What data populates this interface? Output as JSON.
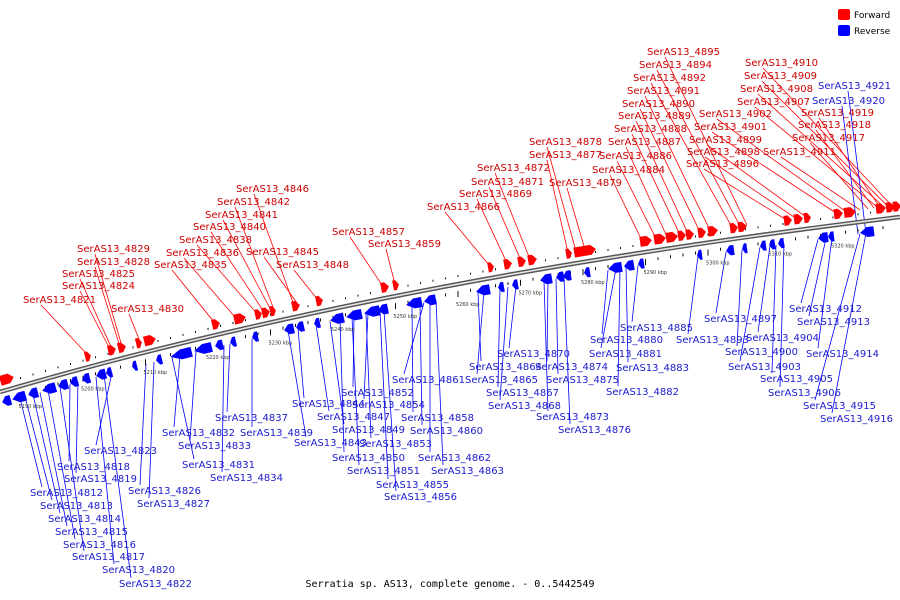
{
  "title": "Serratia sp. AS13, complete genome. - 0..5442549",
  "legend": [
    {
      "label": "Forward",
      "color": "#ff0000"
    },
    {
      "label": "Reverse",
      "color": "#0000ff"
    }
  ],
  "colors": {
    "forward": "#ff0000",
    "reverse": "#0000ff",
    "forward_text": "#cc0000",
    "reverse_text": "#1a1acc",
    "backbone": "#777777"
  },
  "scale": {
    "start_kb": 5188,
    "end_kb": 5330,
    "tick_step_kb": 10,
    "tick_labels": [
      "5190 kbp",
      "5200 kbp",
      "5210 kbp",
      "5220 kbp",
      "5230 kbp",
      "5240 kbp",
      "5250 kbp",
      "5260 kbp",
      "5270 kbp",
      "5280 kbp",
      "5290 kbp",
      "5300 kbp",
      "5310 kbp",
      "5320 kbp"
    ]
  },
  "forward_genes": [
    "SerAS13_4821",
    "SerAS13_4824",
    "SerAS13_4825",
    "SerAS13_4828",
    "SerAS13_4829",
    "SerAS13_4830",
    "SerAS13_4835",
    "SerAS13_4836",
    "SerAS13_4838",
    "SerAS13_4840",
    "SerAS13_4841",
    "SerAS13_4842",
    "SerAS13_4846",
    "SerAS13_4845",
    "SerAS13_4848",
    "SerAS13_4857",
    "SerAS13_4859",
    "SerAS13_4866",
    "SerAS13_4869",
    "SerAS13_4871",
    "SerAS13_4872",
    "SerAS13_4877",
    "SerAS13_4878",
    "SerAS13_4879",
    "SerAS13_4884",
    "SerAS13_4886",
    "SerAS13_4887",
    "SerAS13_4888",
    "SerAS13_4889",
    "SerAS13_4890",
    "SerAS13_4891",
    "SerAS13_4892",
    "SerAS13_4894",
    "SerAS13_4895",
    "SerAS13_4896",
    "SerAS13_4898",
    "SerAS13_4899",
    "SerAS13_4901",
    "SerAS13_4902",
    "SerAS13_4907",
    "SerAS13_4908",
    "SerAS13_4909",
    "SerAS13_4910",
    "SerAS13_4911",
    "SerAS13_4917",
    "SerAS13_4918",
    "SerAS13_4919"
  ],
  "reverse_genes_top": [
    "SerAS13_4920",
    "SerAS13_4921"
  ],
  "reverse_genes": [
    "SerAS13_4812",
    "SerAS13_4813",
    "SerAS13_4814",
    "SerAS13_4815",
    "SerAS13_4816",
    "SerAS13_4817",
    "SerAS13_4818",
    "SerAS13_4819",
    "SerAS13_4820",
    "SerAS13_4822",
    "SerAS13_4823",
    "SerAS13_4826",
    "SerAS13_4827",
    "SerAS13_4831",
    "SerAS13_4832",
    "SerAS13_4833",
    "SerAS13_4834",
    "SerAS13_4837",
    "SerAS13_4839",
    "SerAS13_4843",
    "SerAS13_4844",
    "SerAS13_4847",
    "SerAS13_4849",
    "SerAS13_4850",
    "SerAS13_4851",
    "SerAS13_4852",
    "SerAS13_4853",
    "SerAS13_4854",
    "SerAS13_4855",
    "SerAS13_4856",
    "SerAS13_4858",
    "SerAS13_4860",
    "SerAS13_4861",
    "SerAS13_4862",
    "SerAS13_4863",
    "SerAS13_4864",
    "SerAS13_4865",
    "SerAS13_4867",
    "SerAS13_4868",
    "SerAS13_4870",
    "SerAS13_4873",
    "SerAS13_4874",
    "SerAS13_4875",
    "SerAS13_4876",
    "SerAS13_4880",
    "SerAS13_4881",
    "SerAS13_4882",
    "SerAS13_4883",
    "SerAS13_4885",
    "SerAS13_4893",
    "SerAS13_4897",
    "SerAS13_4900",
    "SerAS13_4903",
    "SerAS13_4904",
    "SerAS13_4905",
    "SerAS13_4906",
    "SerAS13_4912",
    "SerAS13_4913",
    "SerAS13_4914",
    "SerAS13_4915",
    "SerAS13_4916"
  ]
}
